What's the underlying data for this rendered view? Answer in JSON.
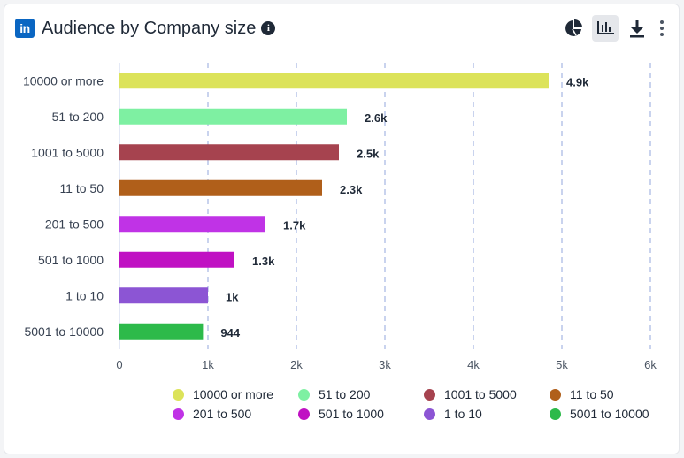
{
  "header": {
    "logo_text": "in",
    "title": "Audience by Company size",
    "info_glyph": "i"
  },
  "toolbar": {
    "icons": [
      "pie-chart-icon",
      "bar-chart-icon",
      "download-icon",
      "more-vertical-icon"
    ],
    "active": "bar-chart-icon"
  },
  "chart_data": {
    "type": "bar",
    "orientation": "horizontal",
    "categories": [
      "10000 or more",
      "51 to 200",
      "1001 to 5000",
      "11 to 50",
      "201 to 500",
      "501 to 1000",
      "1 to 10",
      "5001 to 10000"
    ],
    "values": [
      4850,
      2570,
      2480,
      2290,
      1650,
      1300,
      1000,
      944
    ],
    "value_labels": [
      "4.9k",
      "2.6k",
      "2.5k",
      "2.3k",
      "1.7k",
      "1.3k",
      "1k",
      "944"
    ],
    "colors": [
      "#dce35a",
      "#7ef0a2",
      "#a6434f",
      "#b05f1a",
      "#c033e6",
      "#c011c3",
      "#8c55d4",
      "#2dba4a"
    ],
    "xlim": [
      0,
      6000
    ],
    "xticks": [
      0,
      1000,
      2000,
      3000,
      4000,
      5000,
      6000
    ],
    "xtick_labels": [
      "0",
      "1k",
      "2k",
      "3k",
      "4k",
      "5k",
      "6k"
    ],
    "grid": "vertical dashed",
    "legend_position": "bottom",
    "title": "",
    "xlabel": "",
    "ylabel": ""
  }
}
